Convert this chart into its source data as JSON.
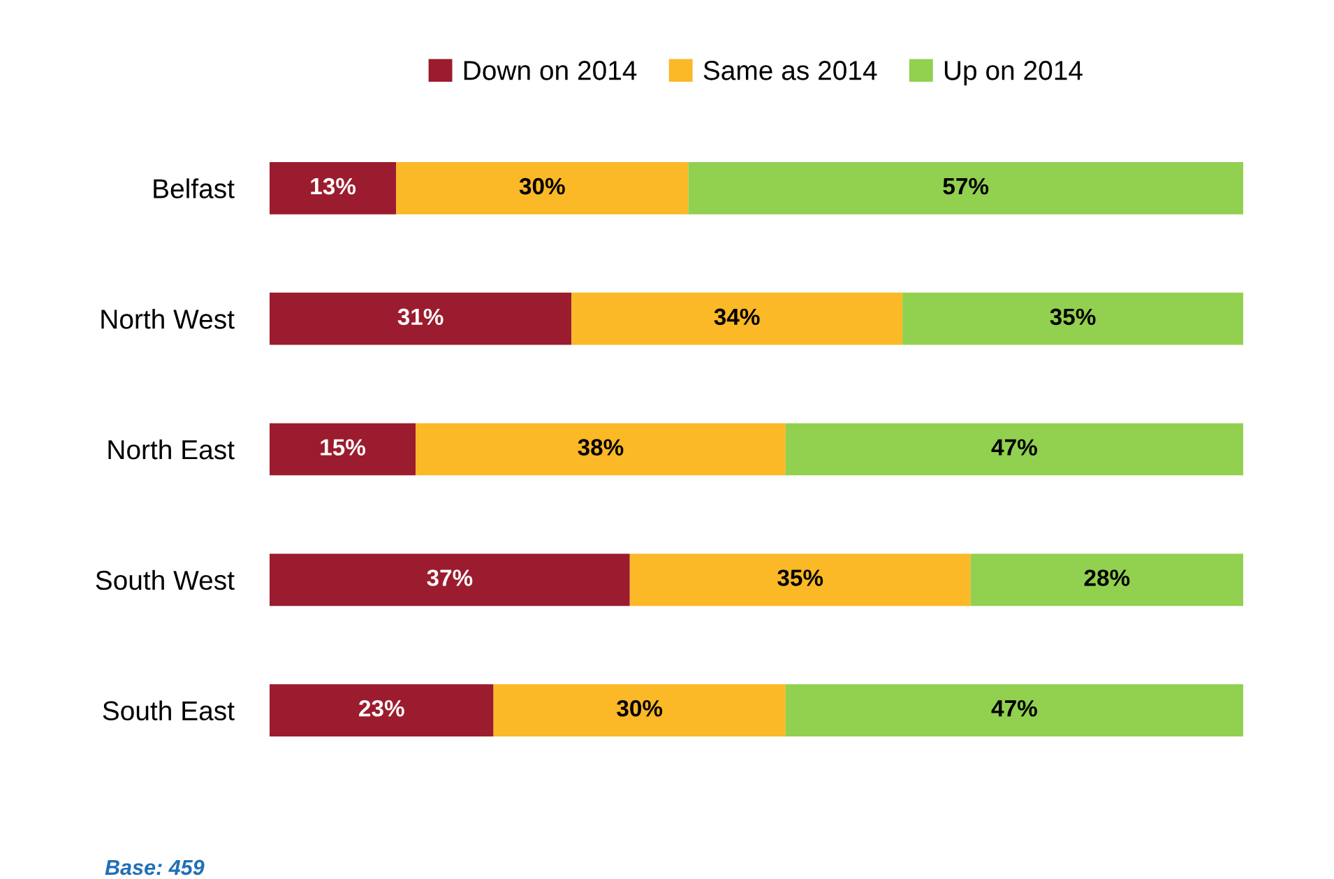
{
  "chart_data": {
    "type": "bar",
    "orientation": "horizontal",
    "stacked": true,
    "categories": [
      "Belfast",
      "North West",
      "North East",
      "South West",
      "South East"
    ],
    "series": [
      {
        "name": "Down on 2014",
        "color": "#9b1c2e",
        "values": [
          13,
          31,
          15,
          37,
          23
        ],
        "value_labels": [
          "13%",
          "31%",
          "15%",
          "37%",
          "23%"
        ]
      },
      {
        "name": "Same as 2014",
        "color": "#fbb827",
        "values": [
          30,
          34,
          38,
          35,
          30
        ],
        "value_labels": [
          "30%",
          "34%",
          "38%",
          "35%",
          "30%"
        ]
      },
      {
        "name": "Up on 2014",
        "color": "#92d050",
        "values": [
          57,
          35,
          47,
          28,
          47
        ],
        "value_labels": [
          "57%",
          "35%",
          "47%",
          "28%",
          "47%"
        ]
      }
    ],
    "xlim": [
      0,
      100
    ],
    "tick_labels": "y",
    "grid": false,
    "legend": "top",
    "annotations": [
      "Base: 459"
    ]
  }
}
